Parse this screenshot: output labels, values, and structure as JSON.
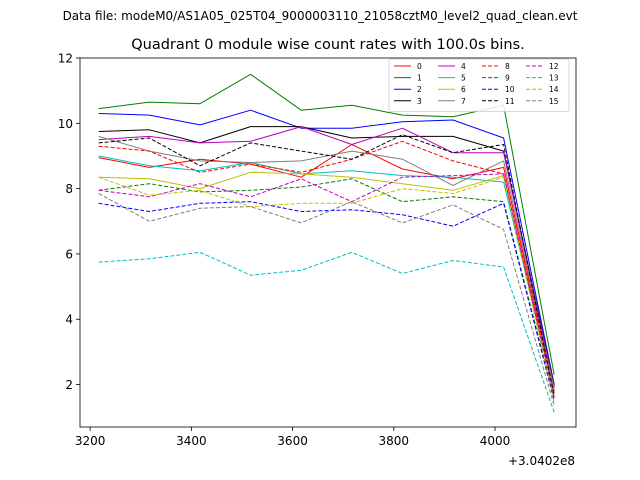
{
  "chart_data": {
    "type": "line",
    "suptitle": "Data file: modeM0/AS1A05_025T04_9000003110_21058cztM0_level2_quad_clean.evt",
    "title": "Quadrant 0 module wise count rates with 100.0s bins.",
    "xlabel": "",
    "ylabel": "",
    "x_offset_label": "+3.0402e8",
    "x": [
      3217,
      3317,
      3417,
      3517,
      3617,
      3717,
      3817,
      3917,
      4017,
      4117
    ],
    "xlim": [
      3180,
      4160
    ],
    "ylim": [
      0.7,
      12.0
    ],
    "xticks": [
      3200,
      3400,
      3600,
      3800,
      4000
    ],
    "xtick_labels": [
      "3200",
      "3400",
      "3600",
      "3800",
      "4000"
    ],
    "yticks": [
      2,
      4,
      6,
      8,
      10,
      12
    ],
    "ytick_labels": [
      "2",
      "4",
      "6",
      "8",
      "10",
      "12"
    ],
    "grid": false,
    "legend_position": "top-right",
    "legend_columns": 4,
    "series": [
      {
        "name": "0",
        "color": "#ff0000",
        "dash": "solid",
        "values": [
          8.95,
          8.65,
          8.9,
          8.75,
          8.35,
          9.35,
          8.6,
          8.3,
          8.65,
          1.8
        ]
      },
      {
        "name": "1",
        "color": "#008000",
        "dash": "solid",
        "values": [
          10.45,
          10.65,
          10.6,
          11.5,
          10.4,
          10.55,
          10.25,
          10.2,
          10.55,
          2.3
        ]
      },
      {
        "name": "2",
        "color": "#0000ff",
        "dash": "solid",
        "values": [
          10.3,
          10.25,
          9.95,
          10.4,
          9.85,
          9.85,
          10.05,
          10.1,
          9.55,
          2.0
        ]
      },
      {
        "name": "3",
        "color": "#000000",
        "dash": "solid",
        "values": [
          9.75,
          9.8,
          9.4,
          9.9,
          9.9,
          9.55,
          9.6,
          9.6,
          9.15,
          1.95
        ]
      },
      {
        "name": "4",
        "color": "#bf00bf",
        "dash": "solid",
        "values": [
          9.5,
          9.6,
          9.4,
          9.45,
          9.9,
          9.35,
          9.85,
          9.1,
          9.1,
          1.9
        ]
      },
      {
        "name": "5",
        "color": "#00bfbf",
        "dash": "solid",
        "values": [
          9.0,
          8.7,
          8.55,
          8.8,
          8.45,
          8.55,
          8.4,
          8.35,
          8.2,
          1.75
        ]
      },
      {
        "name": "6",
        "color": "#bfbf00",
        "dash": "solid",
        "values": [
          8.35,
          8.3,
          8.0,
          8.5,
          8.45,
          8.35,
          8.15,
          7.95,
          8.4,
          1.7
        ]
      },
      {
        "name": "7",
        "color": "#808080",
        "dash": "solid",
        "values": [
          9.6,
          9.15,
          8.85,
          8.8,
          8.85,
          9.15,
          8.9,
          8.1,
          8.85,
          1.85
        ]
      },
      {
        "name": "8",
        "color": "#ff0000",
        "dash": "dashed",
        "values": [
          9.3,
          9.15,
          8.5,
          8.75,
          8.5,
          8.9,
          9.45,
          8.85,
          8.45,
          1.7
        ]
      },
      {
        "name": "9",
        "color": "#008000",
        "dash": "dashed",
        "values": [
          7.95,
          8.15,
          7.9,
          7.95,
          8.05,
          8.3,
          7.6,
          7.75,
          7.6,
          1.6
        ]
      },
      {
        "name": "10",
        "color": "#0000ff",
        "dash": "dashed",
        "values": [
          7.55,
          7.3,
          7.55,
          7.6,
          7.3,
          7.35,
          7.2,
          6.85,
          7.55,
          1.5
        ]
      },
      {
        "name": "11",
        "color": "#000000",
        "dash": "dashed",
        "values": [
          9.4,
          9.55,
          8.7,
          9.4,
          9.15,
          8.9,
          9.65,
          9.1,
          9.35,
          1.65
        ]
      },
      {
        "name": "12",
        "color": "#bf00bf",
        "dash": "dashed",
        "values": [
          7.95,
          7.75,
          8.15,
          7.75,
          8.3,
          7.6,
          8.35,
          8.4,
          8.45,
          1.6
        ]
      },
      {
        "name": "13",
        "color": "#00bfbf",
        "dash": "dashed",
        "values": [
          5.75,
          5.85,
          6.05,
          5.35,
          5.5,
          6.05,
          5.4,
          5.8,
          5.6,
          1.15
        ]
      },
      {
        "name": "14",
        "color": "#bfbf00",
        "dash": "dashed",
        "values": [
          8.35,
          7.8,
          7.95,
          7.45,
          7.55,
          7.55,
          8.0,
          7.85,
          8.35,
          1.45
        ]
      },
      {
        "name": "15",
        "color": "#808080",
        "dash": "dashed",
        "values": [
          7.85,
          7.0,
          7.4,
          7.45,
          6.95,
          7.6,
          6.95,
          7.5,
          6.75,
          1.35
        ]
      }
    ]
  }
}
